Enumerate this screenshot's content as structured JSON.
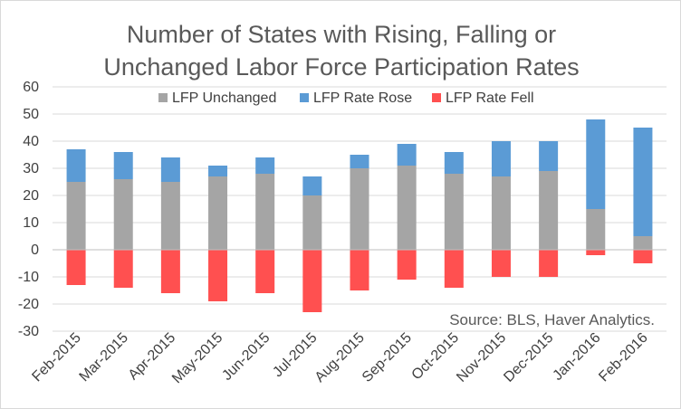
{
  "chart_data": {
    "type": "bar",
    "stacked": true,
    "title": "Number of States with Rising, Falling or Unchanged Labor Force Participation Rates",
    "title_lines": [
      "Number of States with Rising, Falling or",
      "Unchanged Labor Force Participation Rates"
    ],
    "xlabel": "",
    "ylabel": "",
    "ylim": [
      -30,
      60
    ],
    "yticks": [
      60,
      50,
      40,
      30,
      20,
      10,
      0,
      -10,
      -20,
      -30
    ],
    "grid": "horizontal",
    "legend_position": "top",
    "categories": [
      "Feb-2015",
      "Mar-2015",
      "Apr-2015",
      "May-2015",
      "Jun-2015",
      "Jul-2015",
      "Aug-2015",
      "Sep-2015",
      "Oct-2015",
      "Nov-2015",
      "Dec-2015",
      "Jan-2016",
      "Feb-2016"
    ],
    "series": [
      {
        "name": "LFP Unchanged",
        "color": "#a5a5a5",
        "values": [
          25,
          26,
          25,
          27,
          28,
          20,
          30,
          31,
          28,
          27,
          29,
          15,
          5
        ]
      },
      {
        "name": "LFP Rate Rose",
        "color": "#5b9bd5",
        "values": [
          12,
          10,
          9,
          4,
          6,
          7,
          5,
          8,
          8,
          13,
          11,
          33,
          40
        ]
      },
      {
        "name": "LFP Rate Fell",
        "color": "#ff5050",
        "values": [
          -13,
          -14,
          -16,
          -19,
          -16,
          -23,
          -15,
          -11,
          -14,
          -10,
          -10,
          -2,
          -5
        ]
      }
    ],
    "annotation": "Source: BLS, Haver Analytics."
  }
}
